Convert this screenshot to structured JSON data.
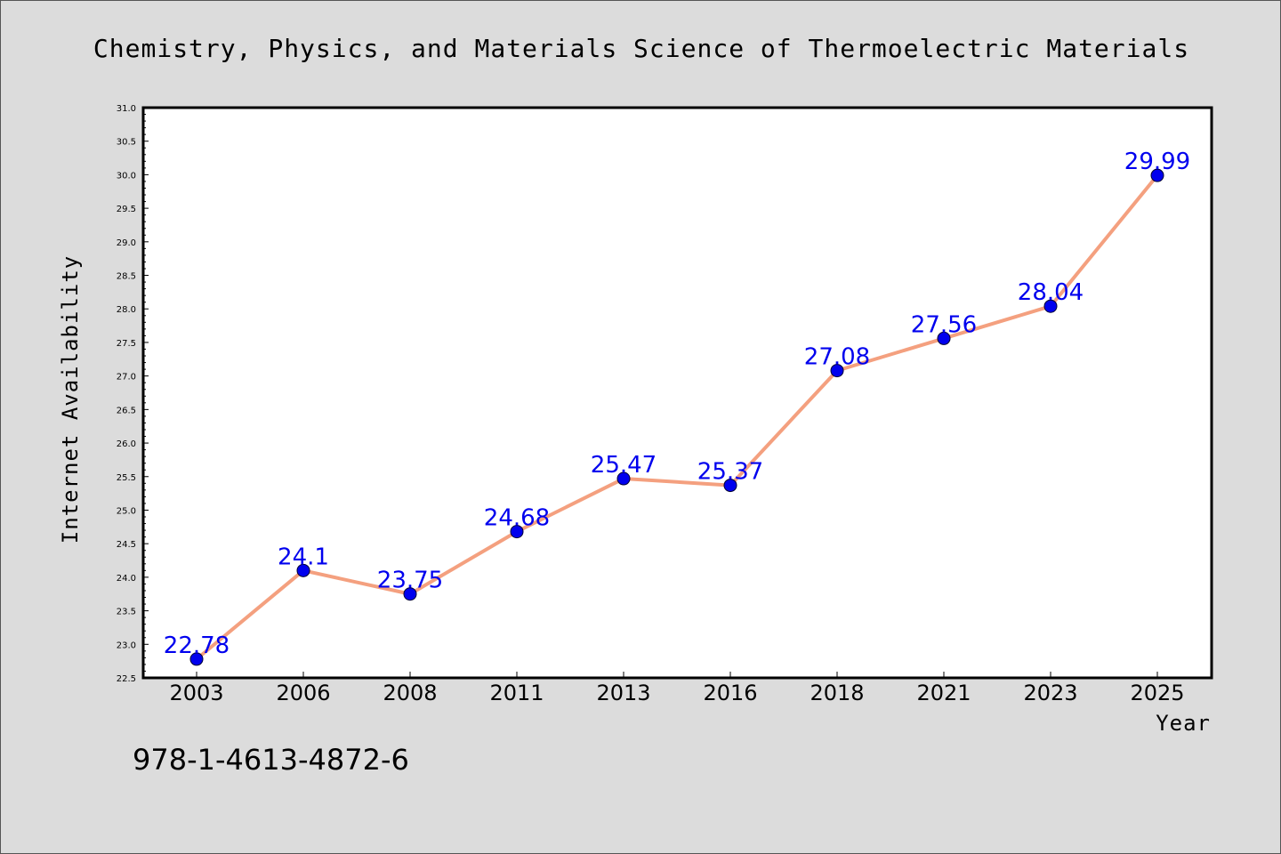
{
  "chart_data": {
    "type": "line",
    "title": "Chemistry, Physics, and Materials Science of Thermoelectric Materials",
    "xlabel": "Year",
    "ylabel": "Internet Availability",
    "categories": [
      "2003",
      "2006",
      "2008",
      "2011",
      "2013",
      "2016",
      "2018",
      "2021",
      "2023",
      "2025"
    ],
    "series": [
      {
        "values": [
          22.78,
          24.1,
          23.75,
          24.68,
          25.47,
          25.37,
          27.08,
          27.56,
          28.04,
          29.99
        ],
        "data_labels": [
          "22.78",
          "24.1",
          "23.75",
          "24.68",
          "25.47",
          "25.37",
          "27.08",
          "27.56",
          "28.04",
          "29.99"
        ]
      }
    ],
    "ylim": [
      22.5,
      31.0
    ],
    "yticks": [
      "22.5",
      "23.0",
      "23.5",
      "24.0",
      "24.5",
      "25.0",
      "25.5",
      "26.0",
      "26.5",
      "27.0",
      "27.5",
      "28.0",
      "28.5",
      "29.0",
      "29.5",
      "30.0",
      "30.5",
      "31.0"
    ],
    "grid": false,
    "colors": {
      "line": "#f4a07f",
      "marker": "#0000ee",
      "marker_edge": "#000033",
      "data_label": "#0000ee",
      "plot_background": "#ffffff",
      "figure_background": "#dcdcdc"
    }
  },
  "footer": {
    "isbn": "978-1-4613-4872-6"
  }
}
